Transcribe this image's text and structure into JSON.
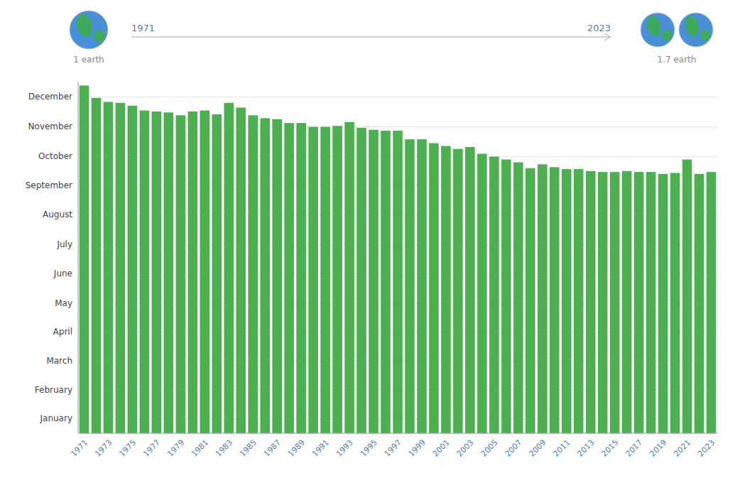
{
  "chart_data": {
    "type": "bar",
    "categories": [
      "1971",
      null,
      "1973",
      null,
      "1975",
      null,
      "1977",
      null,
      "1979",
      null,
      "1981",
      null,
      "1983",
      null,
      "1985",
      null,
      "1987",
      null,
      "1989",
      null,
      "1991",
      null,
      "1993",
      null,
      "1995",
      null,
      "1997",
      null,
      "1999",
      null,
      "2001",
      null,
      "2003",
      null,
      "2005",
      null,
      "2007",
      null,
      "2009",
      null,
      "2011",
      null,
      "2013",
      null,
      "2015",
      null,
      "2017",
      null,
      "2019",
      null,
      "2021",
      null,
      "2023"
    ],
    "values": [
      362,
      349,
      345,
      344,
      341,
      336,
      335,
      334,
      331,
      335,
      336,
      332,
      344,
      339,
      331,
      328,
      327,
      323,
      323,
      319,
      319,
      320,
      324,
      318,
      316,
      315,
      315,
      306,
      306,
      302,
      299,
      296,
      298,
      291,
      288,
      285,
      282,
      276,
      280,
      277,
      275,
      275,
      273,
      272,
      272,
      273,
      272,
      272,
      270,
      271,
      285,
      270,
      272
    ],
    "color": "#4CAF50",
    "ylim": [
      0,
      366
    ],
    "yticks": [
      {
        "value": 15,
        "label": "January"
      },
      {
        "value": 45,
        "label": "February"
      },
      {
        "value": 75,
        "label": "March"
      },
      {
        "value": 105,
        "label": "April"
      },
      {
        "value": 135,
        "label": "May"
      },
      {
        "value": 166,
        "label": "June"
      },
      {
        "value": 196,
        "label": "July"
      },
      {
        "value": 227,
        "label": "August"
      },
      {
        "value": 258,
        "label": "September"
      },
      {
        "value": 288,
        "label": "October"
      },
      {
        "value": 319,
        "label": "November"
      },
      {
        "value": 350,
        "label": "December"
      }
    ],
    "grid": true,
    "annotations": [
      "1971",
      "2023",
      "1 earth",
      "1.7 earth"
    ]
  }
}
